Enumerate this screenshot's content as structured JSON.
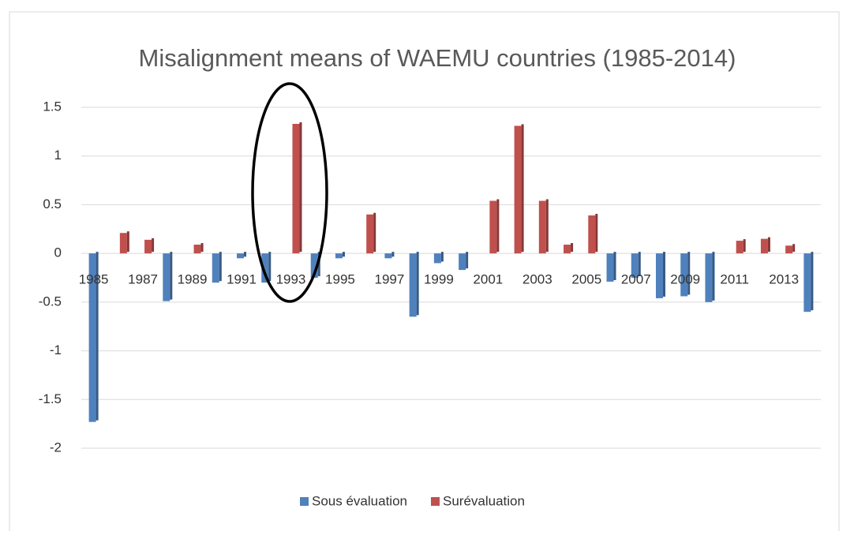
{
  "chart_data": {
    "type": "bar",
    "title": "Misalignment means of WAEMU countries (1985-2014)",
    "categories": [
      "1985",
      null,
      "1987",
      null,
      "1989",
      null,
      "1991",
      null,
      "1993",
      null,
      "1995",
      null,
      "1997",
      null,
      "1999",
      null,
      "2001",
      null,
      "2003",
      null,
      "2005",
      null,
      "2007",
      null,
      "2009",
      null,
      "2011",
      null,
      "2013",
      null
    ],
    "series": [
      {
        "name": "Sous évaluation",
        "color": "#4f81bd",
        "values": [
          -1.73,
          null,
          null,
          -0.49,
          null,
          -0.3,
          -0.05,
          -0.3,
          null,
          -0.25,
          -0.05,
          null,
          -0.05,
          -0.65,
          -0.1,
          -0.17,
          null,
          null,
          null,
          null,
          null,
          -0.29,
          -0.25,
          -0.46,
          -0.44,
          -0.5,
          null,
          null,
          null,
          -0.6
        ]
      },
      {
        "name": "Surévaluation",
        "color": "#c0504d",
        "values": [
          null,
          0.21,
          0.14,
          null,
          0.09,
          null,
          null,
          null,
          1.33,
          null,
          null,
          0.4,
          null,
          null,
          null,
          null,
          0.54,
          1.31,
          0.54,
          0.09,
          0.39,
          null,
          null,
          null,
          null,
          null,
          0.13,
          0.15,
          0.08,
          null
        ]
      }
    ],
    "ylim": [
      -2,
      1.5
    ],
    "yticks": [
      1.5,
      1,
      0.5,
      0,
      -0.5,
      -1,
      -1.5,
      -2
    ],
    "grid": true,
    "legend": "bottom"
  }
}
